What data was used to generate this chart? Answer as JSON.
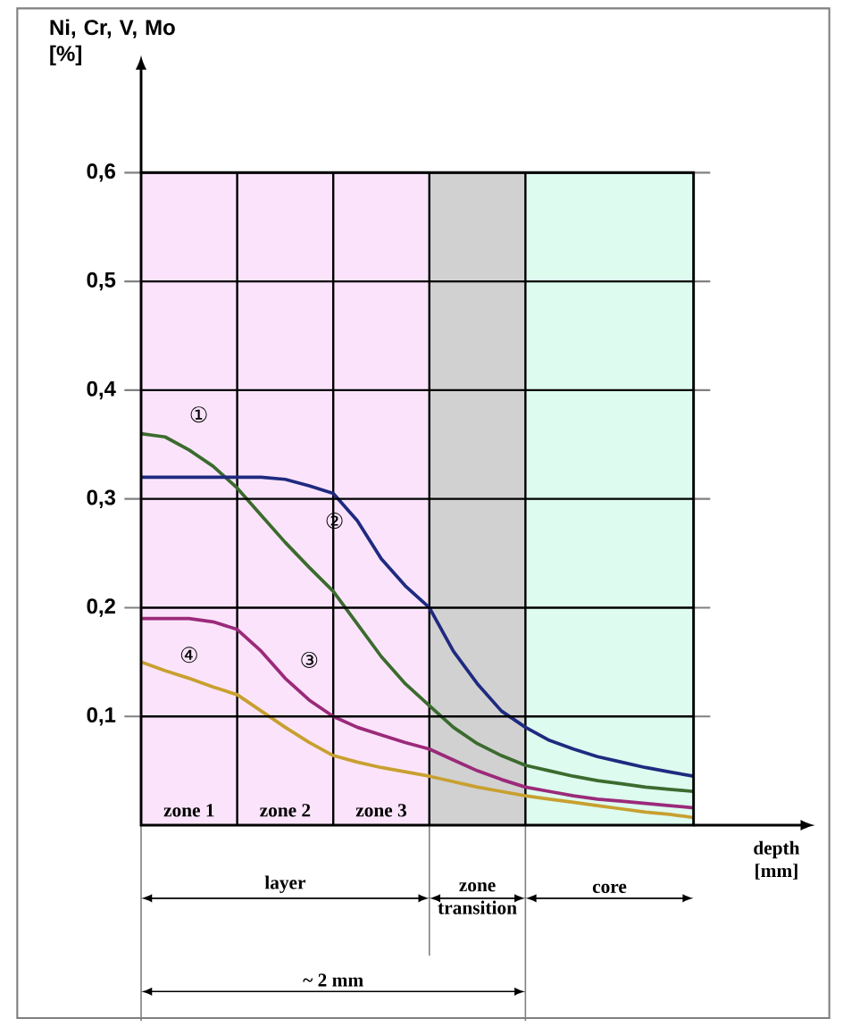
{
  "chart_data": {
    "type": "line",
    "ylabel": "Ni, Cr, V, Mo [%]",
    "xlabel": "depth [mm]",
    "categories": [
      null,
      null,
      null,
      null,
      null,
      null,
      null,
      null,
      null,
      null,
      null,
      null,
      null,
      null,
      null,
      null,
      null,
      null,
      null,
      null,
      null,
      null,
      null,
      null
    ],
    "ylim": [
      0,
      0.6
    ],
    "yticks": [
      {
        "value": 0.1,
        "label": "0,1"
      },
      {
        "value": 0.2,
        "label": "0,2"
      },
      {
        "value": 0.3,
        "label": "0,3"
      },
      {
        "value": 0.4,
        "label": "0,4"
      },
      {
        "value": 0.5,
        "label": "0,5"
      },
      {
        "value": 0.6,
        "label": "0,6"
      }
    ],
    "tick_labels": "y",
    "grid": true,
    "line_style": "solid",
    "series": [
      {
        "name": "①",
        "color": "#3b6b2e",
        "values": [
          0.36,
          0.357,
          0.345,
          0.33,
          0.31,
          0.285,
          0.26,
          0.237,
          0.215,
          0.185,
          0.155,
          0.13,
          0.11,
          0.09,
          0.075,
          0.064,
          0.055,
          0.05,
          0.045,
          0.041,
          0.038,
          0.035,
          0.033,
          0.031
        ]
      },
      {
        "name": "②",
        "color": "#1f2a80",
        "values": [
          0.32,
          0.32,
          0.32,
          0.32,
          0.32,
          0.32,
          0.318,
          0.312,
          0.305,
          0.28,
          0.245,
          0.22,
          0.2,
          0.16,
          0.13,
          0.105,
          0.09,
          0.078,
          0.07,
          0.063,
          0.058,
          0.053,
          0.049,
          0.045
        ]
      },
      {
        "name": "③",
        "color": "#9b2a7a",
        "values": [
          0.19,
          0.19,
          0.19,
          0.187,
          0.18,
          0.16,
          0.135,
          0.115,
          0.1,
          0.09,
          0.083,
          0.076,
          0.07,
          0.06,
          0.05,
          0.042,
          0.035,
          0.031,
          0.027,
          0.024,
          0.022,
          0.02,
          0.018,
          0.016
        ]
      },
      {
        "name": "④",
        "color": "#c8a030",
        "values": [
          0.15,
          0.142,
          0.135,
          0.127,
          0.12,
          0.105,
          0.09,
          0.076,
          0.064,
          0.058,
          0.053,
          0.049,
          0.045,
          0.04,
          0.035,
          0.031,
          0.027,
          0.024,
          0.021,
          0.018,
          0.015,
          0.012,
          0.01,
          0.007
        ]
      }
    ],
    "annotations": [
      "zone 1",
      "zone 2",
      "zone 3",
      "layer",
      "zone transition",
      "core",
      "~ 2 mm"
    ]
  }
}
